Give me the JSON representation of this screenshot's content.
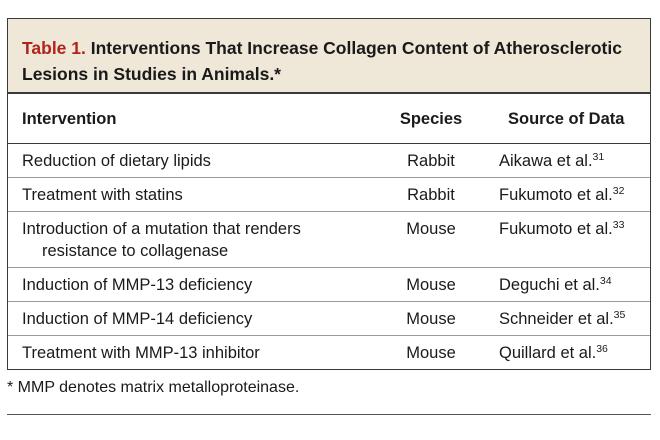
{
  "table": {
    "label": "Table 1.",
    "title_line1": " Interventions That Increase Collagen Content of Atherosclerotic",
    "title_line2": "Lesions in Studies in Animals.*",
    "headers": {
      "intervention": "Intervention",
      "species": "Species",
      "source": "Source of Data"
    },
    "rows": [
      {
        "intervention": "Reduction of dietary lipids",
        "species": "Rabbit",
        "source": "Aikawa et al.",
        "ref": "31"
      },
      {
        "intervention": "Treatment with statins",
        "species": "Rabbit",
        "source": "Fukumoto et al.",
        "ref": "32"
      },
      {
        "intervention": "Introduction of a mutation that renders",
        "intervention_cont": "resistance to collagenase",
        "species": "Mouse",
        "source": "Fukumoto et al.",
        "ref": "33"
      },
      {
        "intervention": "Induction of MMP-13 deficiency",
        "species": "Mouse",
        "source": "Deguchi et al.",
        "ref": "34"
      },
      {
        "intervention": "Induction of MMP-14 deficiency",
        "species": "Mouse",
        "source": "Schneider et al.",
        "ref": "35"
      },
      {
        "intervention": "Treatment with MMP-13 inhibitor",
        "species": "Mouse",
        "source": "Quillard et al.",
        "ref": "36"
      }
    ]
  },
  "footnote": "* MMP denotes matrix metalloproteinase.",
  "colors": {
    "title_band": "#efe7d7",
    "label": "#b0241c",
    "border": "#3a3a3a"
  }
}
